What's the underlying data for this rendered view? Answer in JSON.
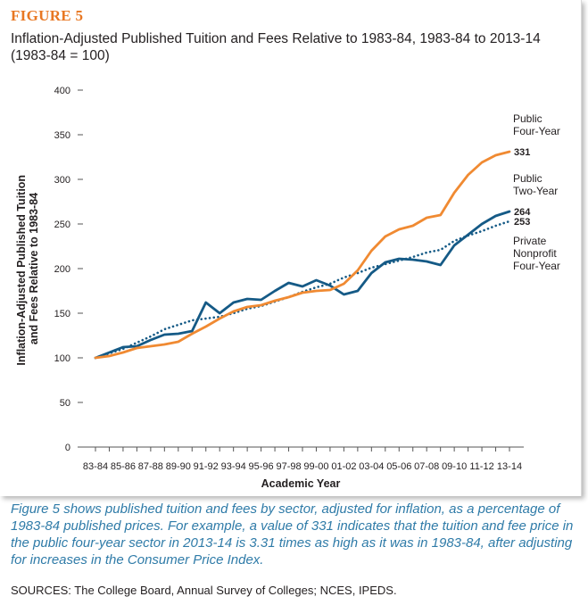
{
  "figure_label": "FIGURE 5",
  "caption": "Figure 5 shows published tuition and fees by sector, adjusted for inflation, as a percentage of 1983-84 published prices. For example, a value of 331 indicates that the tuition and fee price in the public four-year sector in 2013-14 is 3.31 times as high as it was in 1983-84, after adjusting for increases in the Consumer Price Index.",
  "sources": "SOURCES: The College Board, Annual Survey of Colleges; NCES, IPEDS.",
  "colors": {
    "public_four_year": "#f08a32",
    "public_two_year": "#155a86",
    "private_nonprofit": "#155a86",
    "axis": "#555555",
    "title_accent": "#e87722",
    "caption": "#2f7ba8"
  },
  "chart_data": {
    "type": "line",
    "title": "Inflation-Adjusted Published Tuition and Fees Relative to 1983-84, 1983-84 to 2013-14 (1983-84 = 100)",
    "xlabel": "Academic Year",
    "ylabel": "Inflation-Adjusted Published Tuition and Fees Relative to 1983-84",
    "ylim": [
      0,
      400
    ],
    "yticks": [
      0,
      50,
      100,
      150,
      200,
      250,
      300,
      350,
      400
    ],
    "grid": false,
    "x": [
      "83-84",
      "84-85",
      "85-86",
      "86-87",
      "87-88",
      "88-89",
      "89-90",
      "90-91",
      "91-92",
      "92-93",
      "93-94",
      "94-95",
      "95-96",
      "96-97",
      "97-98",
      "98-99",
      "99-00",
      "00-01",
      "01-02",
      "02-03",
      "03-04",
      "04-05",
      "05-06",
      "06-07",
      "07-08",
      "08-09",
      "09-10",
      "10-11",
      "11-12",
      "12-13",
      "13-14"
    ],
    "xtick_labels": [
      "83-84",
      "85-86",
      "87-88",
      "89-90",
      "91-92",
      "93-94",
      "95-96",
      "97-98",
      "99-00",
      "01-02",
      "03-04",
      "05-06",
      "07-08",
      "09-10",
      "11-12",
      "13-14"
    ],
    "series": [
      {
        "name": "Public Four-Year",
        "label_lines": [
          "Public",
          "Four-Year"
        ],
        "end_value": "331",
        "style": "solid",
        "color": "#f08a32",
        "values": [
          100,
          102,
          106,
          111,
          113,
          115,
          118,
          127,
          135,
          144,
          152,
          157,
          159,
          164,
          168,
          173,
          175,
          176,
          183,
          198,
          220,
          236,
          244,
          248,
          257,
          260,
          285,
          305,
          319,
          327,
          331
        ]
      },
      {
        "name": "Public Two-Year",
        "label_lines": [
          "Public",
          "Two-Year"
        ],
        "end_value": "264",
        "style": "solid",
        "color": "#155a86",
        "values": [
          100,
          106,
          112,
          113,
          120,
          126,
          127,
          130,
          162,
          150,
          162,
          166,
          165,
          175,
          184,
          180,
          187,
          181,
          171,
          175,
          195,
          207,
          211,
          210,
          208,
          204,
          226,
          238,
          250,
          259,
          264
        ]
      },
      {
        "name": "Private Nonprofit Four-Year",
        "label_lines": [
          "Private",
          "Nonprofit",
          "Four-Year"
        ],
        "end_value": "253",
        "style": "dotted",
        "color": "#155a86",
        "values": [
          100,
          105,
          110,
          117,
          124,
          132,
          137,
          142,
          144,
          146,
          150,
          155,
          158,
          163,
          168,
          174,
          179,
          183,
          190,
          195,
          201,
          205,
          209,
          213,
          218,
          221,
          231,
          237,
          242,
          248,
          253
        ]
      }
    ]
  }
}
